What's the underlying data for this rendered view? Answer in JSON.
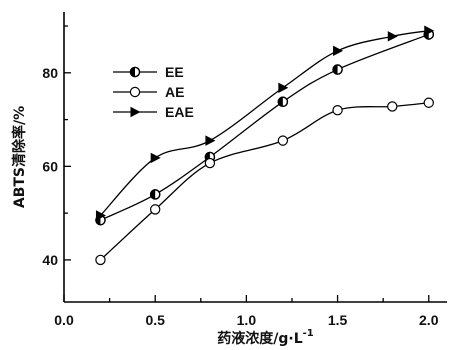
{
  "chart_data": {
    "type": "line",
    "title": "",
    "xlabel": "药液浓度/g·L",
    "xlabel_sup": "-1",
    "ylabel": "ABTS清除率/%",
    "xlim": [
      0.0,
      2.1
    ],
    "ylim": [
      31,
      93
    ],
    "xticks": [
      0.0,
      0.5,
      1.0,
      1.5,
      2.0
    ],
    "xtick_labels": [
      "0.0",
      "0.5",
      "1.0",
      "1.5",
      "2.0"
    ],
    "yticks": [
      40,
      60,
      80
    ],
    "ytick_labels": [
      "40",
      "60",
      "80"
    ],
    "grid": false,
    "legend_position": "upper-left",
    "series": [
      {
        "name": "EE",
        "marker": "half-filled-circle",
        "x": [
          0.2,
          0.5,
          0.8,
          1.2,
          1.5,
          2.0
        ],
        "values": [
          48.5,
          54.0,
          62.0,
          73.8,
          80.7,
          88.2
        ]
      },
      {
        "name": "AE",
        "marker": "open-circle",
        "x": [
          0.2,
          0.5,
          0.8,
          1.2,
          1.5,
          1.8,
          2.0
        ],
        "values": [
          40.0,
          50.8,
          60.7,
          65.5,
          72.0,
          72.8,
          73.6
        ]
      },
      {
        "name": "EAE",
        "marker": "filled-right-triangle",
        "x": [
          0.2,
          0.5,
          0.8,
          1.2,
          1.5,
          1.8,
          2.0
        ],
        "values": [
          49.5,
          61.8,
          65.5,
          76.8,
          84.7,
          87.8,
          89.0
        ]
      }
    ]
  }
}
